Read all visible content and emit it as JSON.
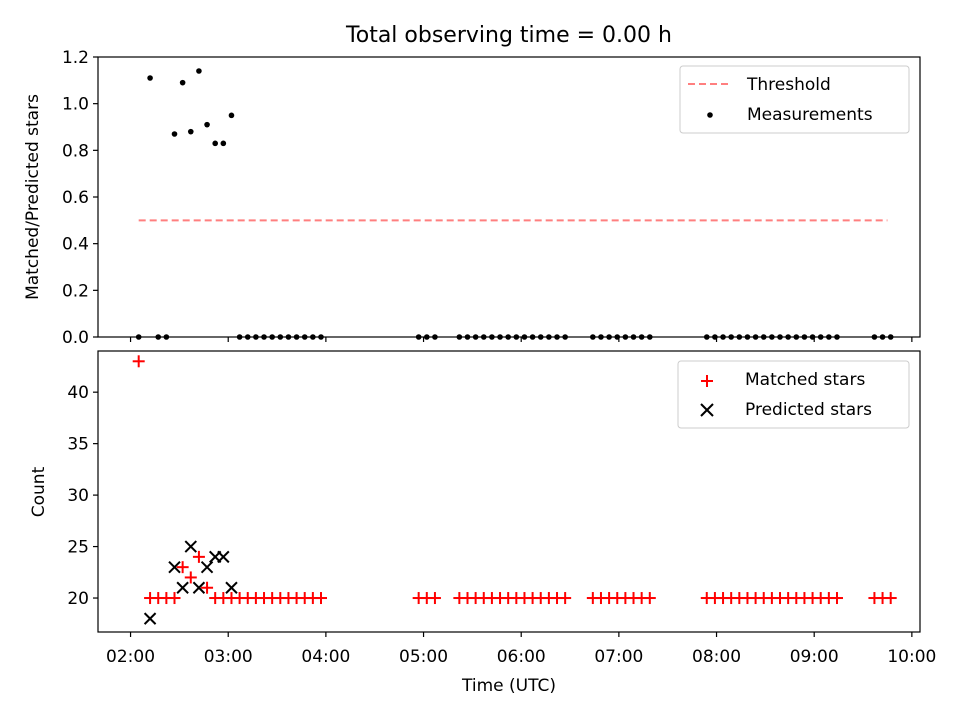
{
  "figure": {
    "title": "Total observing time = 0.00 h"
  },
  "chart_data": [
    {
      "type": "scatter",
      "panel": "top",
      "ylabel": "Matched/Predicted stars",
      "ylim": [
        0.0,
        1.2
      ],
      "yticks": [
        "0.0",
        "0.2",
        "0.4",
        "0.6",
        "0.8",
        "1.0",
        "1.2"
      ],
      "xlim": [
        "01:40",
        "10:05"
      ],
      "xtick_labels_shown": false,
      "legend": {
        "placement": "top-right",
        "entries": [
          "Threshold",
          "Measurements"
        ]
      },
      "series": [
        {
          "name": "Threshold",
          "style": "dashed-line",
          "color": "#ff7f7f",
          "x": [
            "02:05",
            "09:45"
          ],
          "y": [
            0.5,
            0.5
          ]
        },
        {
          "name": "Measurements",
          "style": "dot",
          "color": "#000000",
          "x": [
            "02:05",
            "02:12",
            "02:17",
            "02:22",
            "02:27",
            "02:32",
            "02:37",
            "02:42",
            "02:47",
            "02:52",
            "02:57",
            "03:02",
            "03:07",
            "03:12",
            "03:17",
            "03:22",
            "03:27",
            "03:32",
            "03:37",
            "03:42",
            "03:47",
            "03:52",
            "03:57",
            "04:57",
            "05:02",
            "05:07",
            "05:22",
            "05:27",
            "05:32",
            "05:37",
            "05:42",
            "05:47",
            "05:52",
            "05:57",
            "06:02",
            "06:07",
            "06:12",
            "06:17",
            "06:22",
            "06:27",
            "06:44",
            "06:49",
            "06:54",
            "06:59",
            "07:04",
            "07:09",
            "07:14",
            "07:19",
            "07:54",
            "07:59",
            "08:04",
            "08:09",
            "08:14",
            "08:19",
            "08:24",
            "08:29",
            "08:34",
            "08:39",
            "08:44",
            "08:49",
            "08:54",
            "08:59",
            "09:04",
            "09:09",
            "09:14",
            "09:37",
            "09:42",
            "09:47"
          ],
          "y": [
            0.0,
            1.11,
            0.0,
            0.0,
            0.87,
            1.09,
            0.88,
            1.14,
            0.91,
            0.83,
            0.83,
            0.95,
            0.0,
            0.0,
            0.0,
            0.0,
            0.0,
            0.0,
            0.0,
            0.0,
            0.0,
            0.0,
            0.0,
            0.0,
            0.0,
            0.0,
            0.0,
            0.0,
            0.0,
            0.0,
            0.0,
            0.0,
            0.0,
            0.0,
            0.0,
            0.0,
            0.0,
            0.0,
            0.0,
            0.0,
            0.0,
            0.0,
            0.0,
            0.0,
            0.0,
            0.0,
            0.0,
            0.0,
            0.0,
            0.0,
            0.0,
            0.0,
            0.0,
            0.0,
            0.0,
            0.0,
            0.0,
            0.0,
            0.0,
            0.0,
            0.0,
            0.0,
            0.0,
            0.0,
            0.0,
            0.0,
            0.0,
            0.0
          ]
        }
      ]
    },
    {
      "type": "scatter",
      "panel": "bottom",
      "xlabel": "Time (UTC)",
      "ylabel": "Count",
      "ylim": [
        16.7,
        44.0
      ],
      "yticks": [
        "20",
        "25",
        "30",
        "35",
        "40"
      ],
      "xlim": [
        "01:40",
        "10:05"
      ],
      "xticks": [
        "02:00",
        "03:00",
        "04:00",
        "05:00",
        "06:00",
        "07:00",
        "08:00",
        "09:00",
        "10:00"
      ],
      "legend": {
        "placement": "top-right",
        "entries": [
          "Matched stars",
          "Predicted stars"
        ]
      },
      "series": [
        {
          "name": "Matched stars",
          "marker": "plus",
          "color": "#ff0000",
          "x": [
            "02:05",
            "02:12",
            "02:17",
            "02:22",
            "02:27",
            "02:32",
            "02:37",
            "02:42",
            "02:47",
            "02:52",
            "02:57",
            "03:02",
            "03:07",
            "03:12",
            "03:17",
            "03:22",
            "03:27",
            "03:32",
            "03:37",
            "03:42",
            "03:47",
            "03:52",
            "03:57",
            "04:57",
            "05:02",
            "05:07",
            "05:22",
            "05:27",
            "05:32",
            "05:37",
            "05:42",
            "05:47",
            "05:52",
            "05:57",
            "06:02",
            "06:07",
            "06:12",
            "06:17",
            "06:22",
            "06:27",
            "06:44",
            "06:49",
            "06:54",
            "06:59",
            "07:04",
            "07:09",
            "07:14",
            "07:19",
            "07:54",
            "07:59",
            "08:04",
            "08:09",
            "08:14",
            "08:19",
            "08:24",
            "08:29",
            "08:34",
            "08:39",
            "08:44",
            "08:49",
            "08:54",
            "08:59",
            "09:04",
            "09:09",
            "09:14",
            "09:37",
            "09:42",
            "09:47"
          ],
          "y": [
            43,
            20,
            20,
            20,
            20,
            23,
            22,
            24,
            21,
            20,
            20,
            20,
            20,
            20,
            20,
            20,
            20,
            20,
            20,
            20,
            20,
            20,
            20,
            20,
            20,
            20,
            20,
            20,
            20,
            20,
            20,
            20,
            20,
            20,
            20,
            20,
            20,
            20,
            20,
            20,
            20,
            20,
            20,
            20,
            20,
            20,
            20,
            20,
            20,
            20,
            20,
            20,
            20,
            20,
            20,
            20,
            20,
            20,
            20,
            20,
            20,
            20,
            20,
            20,
            20,
            20,
            20,
            20
          ]
        },
        {
          "name": "Predicted stars",
          "marker": "x",
          "color": "#000000",
          "x": [
            "02:12",
            "02:27",
            "02:32",
            "02:37",
            "02:42",
            "02:47",
            "02:52",
            "02:57",
            "03:02"
          ],
          "y": [
            18,
            23,
            21,
            25,
            21,
            23,
            24,
            24,
            21
          ]
        }
      ]
    }
  ]
}
